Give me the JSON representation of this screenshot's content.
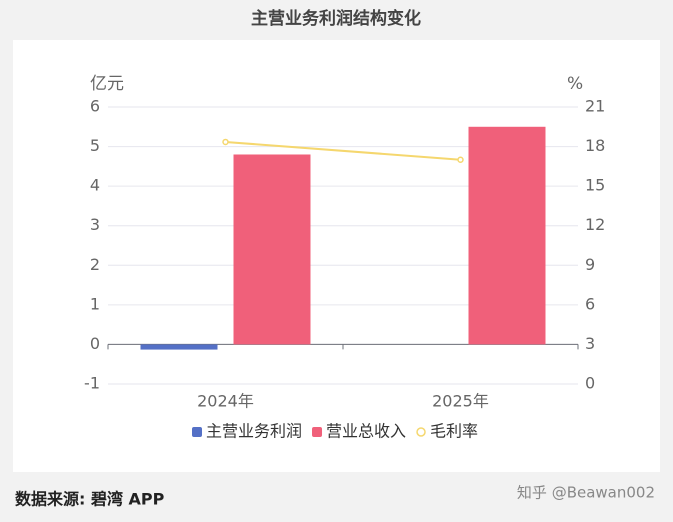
{
  "chart_data": {
    "type": "bar-line",
    "title": "主营业务利润结构变化",
    "y_label": "亿元",
    "y2_label": "%",
    "categories": [
      "2024年",
      "2025年"
    ],
    "series": [
      {
        "name": "主营业务利润",
        "color": "#5470c6",
        "type": "bar",
        "values": [
          -0.13,
          null
        ]
      },
      {
        "name": "营业总收入",
        "color": "#f0607a",
        "type": "bar",
        "values": [
          4.8,
          5.5
        ]
      },
      {
        "name": "毛利率",
        "color": "#f5d76e",
        "type": "line",
        "axis": "y2",
        "values": [
          18.35,
          17.0
        ]
      }
    ],
    "ylim": [
      -1,
      6
    ],
    "yticks": [
      -1,
      0,
      1,
      2,
      3,
      4,
      5,
      6
    ],
    "y2lim": [
      0,
      21
    ],
    "y2ticks": [
      0,
      3,
      6,
      9,
      12,
      15,
      18,
      21
    ],
    "grid": true,
    "source": "数据来源: 碧湾 APP",
    "credit": "知乎 @Beawan002"
  }
}
